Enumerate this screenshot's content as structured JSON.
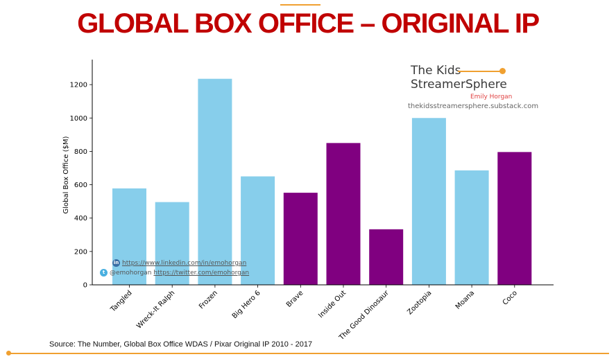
{
  "page": {
    "title": "GLOBAL BOX OFFICE – ORIGINAL IP",
    "source": "Source: The Number, Global Box Office WDAS / Pixar Original IP 2010 - 2017"
  },
  "brand": {
    "line1": "The Kids",
    "line2": "StreamerSphere",
    "author": "Emily Horgan",
    "url": "thekidsstreamersphere.substack.com"
  },
  "social": {
    "linkedin_icon": "linkedin-icon",
    "linkedin_url": "https://www.linkedin.com/in/emohorgan",
    "twitter_icon": "twitter-icon",
    "twitter_handle": "@emohorgan",
    "twitter_url": "https://twitter.com/emohorgan"
  },
  "colors": {
    "title": "#c00000",
    "accent": "#f0a030",
    "wdas": "#87ceeb",
    "pixar": "#800080"
  },
  "chart_data": {
    "type": "bar",
    "ylabel": "Global Box Office ($M)",
    "xlabel": "",
    "ylim": [
      0,
      1350
    ],
    "yticks": [
      0,
      200,
      400,
      600,
      800,
      1000,
      1200
    ],
    "categories": [
      "Tangled",
      "Wreck-It Ralph",
      "Frozen",
      "Big Hero 6",
      "Brave",
      "Inside Out",
      "The Good Dinosaur",
      "Zootopia",
      "Moana",
      "Coco"
    ],
    "values": [
      578,
      496,
      1235,
      650,
      552,
      850,
      333,
      1000,
      686,
      796
    ],
    "bar_colors": [
      "#87ceeb",
      "#87ceeb",
      "#87ceeb",
      "#87ceeb",
      "#800080",
      "#800080",
      "#800080",
      "#87ceeb",
      "#87ceeb",
      "#800080"
    ],
    "grid": false,
    "legend": "none"
  }
}
